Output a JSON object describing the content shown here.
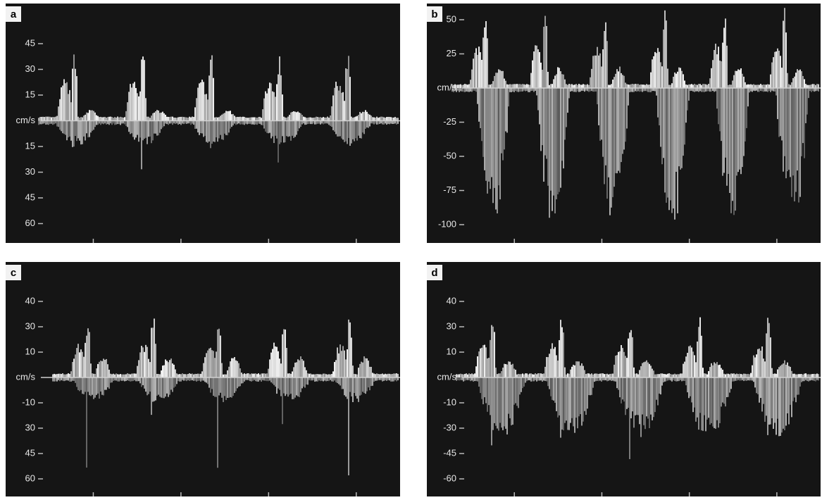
{
  "panels": [
    {
      "label": "a",
      "axis_labels": [
        "45",
        "30",
        "15",
        "cm/s",
        "15",
        "30",
        "45",
        "60"
      ]
    },
    {
      "label": "b",
      "axis_labels": [
        "50",
        "25",
        "cm/s",
        "-25",
        "-50",
        "-75",
        "-100"
      ]
    },
    {
      "label": "c",
      "axis_labels": [
        "40",
        "30",
        "10",
        "cm/s",
        "-10",
        "30",
        "45",
        "60"
      ]
    },
    {
      "label": "d",
      "axis_labels": [
        "40",
        "30",
        "10",
        "cm/s",
        "-10",
        "-30",
        "-45",
        "-60"
      ]
    }
  ]
}
